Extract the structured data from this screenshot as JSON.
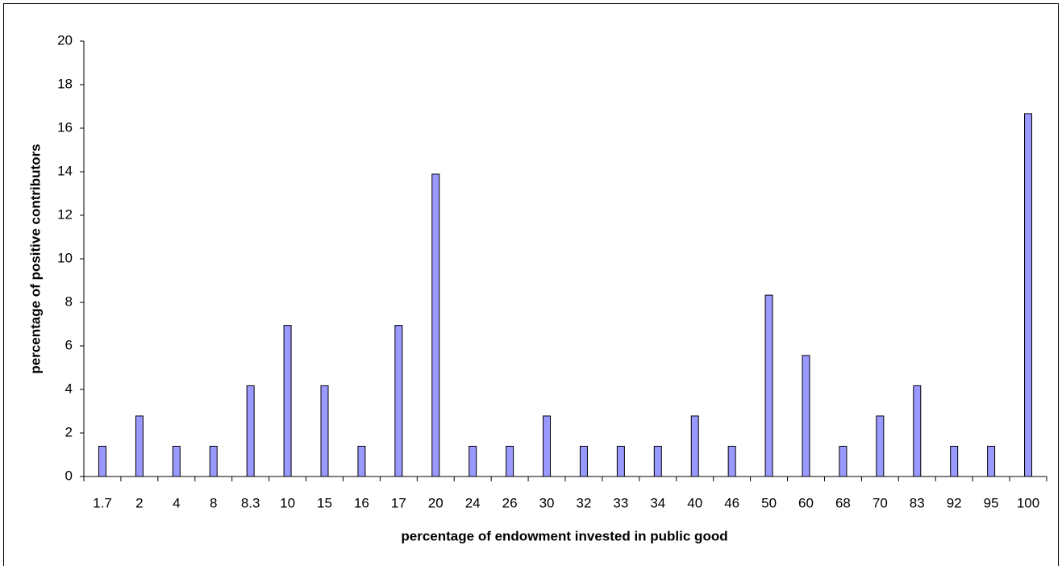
{
  "chart_data": {
    "type": "bar",
    "x_label": "percentage of endowment invested in public good",
    "y_label": "percentage of positive contributors",
    "categories": [
      "1.7",
      "2",
      "4",
      "8",
      "8.3",
      "10",
      "15",
      "16",
      "17",
      "20",
      "24",
      "26",
      "30",
      "32",
      "33",
      "34",
      "40",
      "46",
      "50",
      "60",
      "68",
      "70",
      "83",
      "92",
      "95",
      "100"
    ],
    "values": [
      1.39,
      2.78,
      1.39,
      1.39,
      4.17,
      6.94,
      4.17,
      1.39,
      6.94,
      13.89,
      1.39,
      1.39,
      2.78,
      1.39,
      1.39,
      1.39,
      2.78,
      1.39,
      8.33,
      5.56,
      1.39,
      2.78,
      4.17,
      1.39,
      1.39,
      16.67
    ],
    "color": "#9999ff",
    "ylim": [
      0,
      20
    ],
    "yticks": [
      0,
      2,
      4,
      6,
      8,
      10,
      12,
      14,
      16,
      18,
      20
    ],
    "grid": false
  }
}
